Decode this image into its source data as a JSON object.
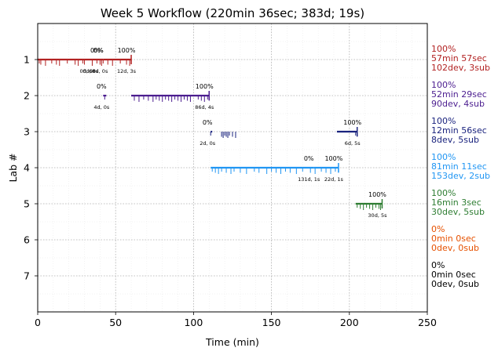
{
  "chart_data": {
    "type": "timeline",
    "title": "Week 5 Workflow (220min 36sec; 383d; 19s)",
    "xlabel": "Time (min)",
    "ylabel": "Lab #",
    "xlim": [
      0,
      250
    ],
    "ylim": [
      8,
      0
    ],
    "xticks": [
      0,
      50,
      100,
      150,
      200,
      250
    ],
    "yticks": [
      1,
      2,
      3,
      4,
      5,
      6,
      7
    ],
    "grid": true,
    "labs": [
      {
        "lab": 1,
        "color": "#b22222",
        "summary": [
          "100%",
          "57min 57sec",
          "102dev, 3sub"
        ],
        "segments": [
          {
            "start": 0,
            "end": 42,
            "top": "0%",
            "bottom": "68d, 0s"
          },
          {
            "start": 42,
            "end": 60,
            "top": "100%",
            "bottom": "12d, 3s"
          }
        ],
        "extra_labels": [
          {
            "x": 37,
            "top": "0%",
            "bottom": "0d, 0s"
          },
          {
            "x": 39,
            "top": "0%",
            "bottom": "0d, 0s"
          }
        ],
        "events": [
          1,
          2,
          5,
          9,
          12,
          14,
          19,
          24,
          26,
          29,
          30,
          35,
          38,
          40,
          41,
          42,
          45,
          48,
          53,
          57,
          59,
          60
        ],
        "end_marker": 60
      },
      {
        "lab": 2,
        "color": "#4b1d8f",
        "summary": [
          "100%",
          "52min 29sec",
          "90dev, 4sub"
        ],
        "segments": [
          {
            "start": 42,
            "end": 44,
            "top": "0%",
            "bottom": "4d, 0s"
          },
          {
            "start": 60,
            "end": 110,
            "top": "100%",
            "bottom": "86d, 4s"
          }
        ],
        "events": [
          43,
          62,
          65,
          68,
          71,
          74,
          76,
          78,
          80,
          82,
          84,
          86,
          88,
          90,
          92,
          94,
          96,
          98,
          103,
          105,
          107,
          109,
          110
        ],
        "end_marker": 110
      },
      {
        "lab": 3,
        "color": "#1a237e",
        "summary": [
          "100%",
          "12min 56sec",
          "8dev, 5sub"
        ],
        "segments": [
          {
            "start": 111,
            "end": 112,
            "top": "0%",
            "bottom": "2d, 0s"
          },
          {
            "start": 192,
            "end": 205,
            "top": "100%",
            "bottom": "6d, 5s"
          }
        ],
        "events": [
          111,
          118,
          119,
          120,
          121,
          122,
          123,
          125,
          127,
          204,
          205
        ],
        "end_marker": 205
      },
      {
        "lab": 4,
        "color": "#2196f3",
        "summary": [
          "100%",
          "81min 11sec",
          "153dev, 2sub"
        ],
        "segments": [
          {
            "start": 111,
            "end": 177,
            "top": "0%",
            "bottom": "131d, 1s"
          },
          {
            "start": 177,
            "end": 193,
            "top": "100%",
            "bottom": "22d, 1s"
          }
        ],
        "events": [
          112,
          114,
          116,
          118,
          121,
          124,
          126,
          130,
          134,
          139,
          142,
          147,
          150,
          153,
          156,
          159,
          162,
          166,
          170,
          175,
          178,
          182,
          185,
          188,
          191,
          193
        ],
        "end_marker": 193
      },
      {
        "lab": 5,
        "color": "#2e7d32",
        "summary": [
          "100%",
          "16min 3sec",
          "30dev, 5sub"
        ],
        "segments": [
          {
            "start": 204,
            "end": 221,
            "top": "100%",
            "bottom": "30d, 5s"
          }
        ],
        "events": [
          205,
          207,
          209,
          211,
          213,
          215,
          217,
          219,
          220,
          221
        ],
        "end_marker": 221
      },
      {
        "lab": 6,
        "color": "#e65100",
        "summary": [
          "0%",
          "0min 0sec",
          "0dev, 0sub"
        ],
        "segments": [],
        "events": []
      },
      {
        "lab": 7,
        "color": "#000000",
        "summary": [
          "0%",
          "0min 0sec",
          "0dev, 0sub"
        ],
        "segments": [],
        "events": []
      }
    ]
  }
}
